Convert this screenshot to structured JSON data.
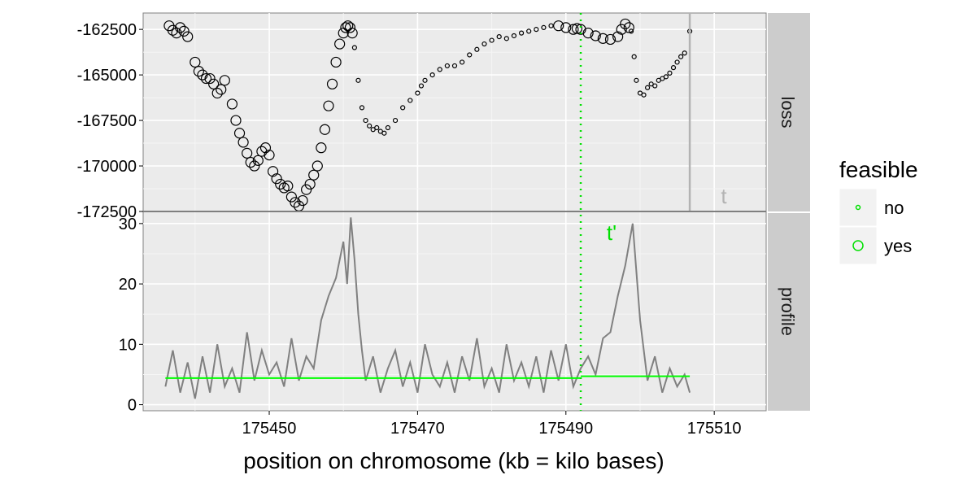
{
  "chart_data": {
    "type": "scatter",
    "xlabel": "position on chromosome (kb = kilo bases)",
    "xlim": [
      175433,
      175517
    ],
    "x_ticks": [
      175450,
      175470,
      175490,
      175510
    ],
    "panels": [
      {
        "strip": "loss",
        "ylim": [
          -172500,
          -161600
        ],
        "y_ticks": [
          -162500,
          -165000,
          -167500,
          -170000,
          -172500
        ],
        "series": [
          {
            "name": "yes",
            "points": [
              [
                175436.5,
                -162300
              ],
              [
                175437,
                -162550
              ],
              [
                175437.5,
                -162700
              ],
              [
                175438,
                -162400
              ],
              [
                175438.5,
                -162600
              ],
              [
                175439,
                -162900
              ],
              [
                175440,
                -164300
              ],
              [
                175440.5,
                -164800
              ],
              [
                175441,
                -165000
              ],
              [
                175441.5,
                -165200
              ],
              [
                175442,
                -165200
              ],
              [
                175442.5,
                -165500
              ],
              [
                175443,
                -166000
              ],
              [
                175443.5,
                -165800
              ],
              [
                175444,
                -165300
              ],
              [
                175445,
                -166600
              ],
              [
                175445.5,
                -167500
              ],
              [
                175446,
                -168200
              ],
              [
                175446.5,
                -168700
              ],
              [
                175447,
                -169300
              ],
              [
                175447.5,
                -169800
              ],
              [
                175448,
                -170000
              ],
              [
                175448.5,
                -169700
              ],
              [
                175449,
                -169200
              ],
              [
                175449.5,
                -169000
              ],
              [
                175450,
                -169400
              ],
              [
                175450.5,
                -170300
              ],
              [
                175451,
                -170700
              ],
              [
                175451.5,
                -171000
              ],
              [
                175452,
                -171200
              ],
              [
                175452.5,
                -171100
              ],
              [
                175453,
                -171700
              ],
              [
                175453.5,
                -172000
              ],
              [
                175454,
                -172200
              ],
              [
                175454.5,
                -171900
              ],
              [
                175455,
                -171300
              ],
              [
                175455.5,
                -171000
              ],
              [
                175456,
                -170500
              ],
              [
                175456.5,
                -170000
              ],
              [
                175457,
                -169000
              ],
              [
                175457.5,
                -168000
              ],
              [
                175458,
                -166700
              ],
              [
                175458.5,
                -165500
              ],
              [
                175459,
                -164300
              ],
              [
                175459.5,
                -163300
              ],
              [
                175460,
                -162700
              ],
              [
                175460.3,
                -162400
              ],
              [
                175460.6,
                -162300
              ],
              [
                175460.9,
                -162400
              ],
              [
                175461.2,
                -162700
              ],
              [
                175489,
                -162300
              ],
              [
                175490,
                -162400
              ],
              [
                175491,
                -162500
              ],
              [
                175491.5,
                -162450
              ],
              [
                175492,
                -162500
              ],
              [
                175493,
                -162700
              ],
              [
                175494,
                -162850
              ],
              [
                175495,
                -163000
              ],
              [
                175496,
                -163050
              ],
              [
                175497,
                -162900
              ],
              [
                175497.5,
                -162500
              ],
              [
                175498,
                -162200
              ],
              [
                175498.5,
                -162400
              ]
            ]
          },
          {
            "name": "no",
            "points": [
              [
                175461.5,
                -163500
              ],
              [
                175462,
                -165300
              ],
              [
                175462.5,
                -166800
              ],
              [
                175463,
                -167500
              ],
              [
                175463.5,
                -167800
              ],
              [
                175464,
                -168000
              ],
              [
                175464.5,
                -167900
              ],
              [
                175465,
                -168100
              ],
              [
                175465.5,
                -168200
              ],
              [
                175466,
                -167900
              ],
              [
                175467,
                -167500
              ],
              [
                175468,
                -166800
              ],
              [
                175469,
                -166400
              ],
              [
                175470,
                -166000
              ],
              [
                175470.5,
                -165600
              ],
              [
                175471,
                -165300
              ],
              [
                175472,
                -165000
              ],
              [
                175473,
                -164700
              ],
              [
                175474,
                -164500
              ],
              [
                175475,
                -164500
              ],
              [
                175476,
                -164300
              ],
              [
                175477,
                -163900
              ],
              [
                175478,
                -163600
              ],
              [
                175479,
                -163300
              ],
              [
                175480,
                -163100
              ],
              [
                175481,
                -162900
              ],
              [
                175482,
                -163000
              ],
              [
                175483,
                -162850
              ],
              [
                175484,
                -162700
              ],
              [
                175485,
                -162600
              ],
              [
                175486,
                -162500
              ],
              [
                175487,
                -162400
              ],
              [
                175488,
                -162300
              ],
              [
                175498.8,
                -162600
              ],
              [
                175499.2,
                -164000
              ],
              [
                175499.5,
                -165300
              ],
              [
                175500,
                -166000
              ],
              [
                175500.5,
                -166100
              ],
              [
                175501,
                -165700
              ],
              [
                175501.5,
                -165500
              ],
              [
                175502,
                -165600
              ],
              [
                175502.5,
                -165300
              ],
              [
                175503,
                -165200
              ],
              [
                175503.5,
                -165100
              ],
              [
                175504,
                -164900
              ],
              [
                175504.5,
                -164600
              ],
              [
                175505,
                -164300
              ],
              [
                175505.5,
                -164000
              ],
              [
                175506,
                -163800
              ],
              [
                175506.7,
                -162600
              ]
            ]
          }
        ]
      },
      {
        "strip": "profile",
        "ylim": [
          -1,
          32
        ],
        "y_ticks": [
          0,
          10,
          20,
          30
        ],
        "profile": {
          "x": [
            175436,
            175437,
            175438,
            175439,
            175440,
            175441,
            175442,
            175443,
            175444,
            175445,
            175446,
            175447,
            175448,
            175449,
            175450,
            175451,
            175452,
            175453,
            175454,
            175455,
            175456,
            175457,
            175458,
            175459,
            175460,
            175460.5,
            175461,
            175461.5,
            175462,
            175462.5,
            175463,
            175464,
            175465,
            175466,
            175467,
            175468,
            175469,
            175470,
            175471,
            175472,
            175473,
            175474,
            175475,
            175476,
            175477,
            175478,
            175479,
            175480,
            175481,
            175482,
            175483,
            175484,
            175485,
            175486,
            175487,
            175488,
            175489,
            175490,
            175491,
            175492,
            175493,
            175494,
            175495,
            175496,
            175497,
            175498,
            175499,
            175500,
            175501,
            175502,
            175503,
            175504,
            175505,
            175506,
            175506.7
          ],
          "y": [
            3,
            9,
            2,
            7,
            1,
            8,
            2,
            10,
            3,
            6,
            2,
            12,
            4,
            9,
            5,
            7,
            3,
            11,
            4,
            8,
            6,
            14,
            18,
            21,
            27,
            20,
            31,
            24,
            15,
            9,
            4,
            8,
            2,
            6,
            9,
            3,
            7,
            2,
            10,
            5,
            3,
            7,
            2,
            8,
            4,
            11,
            3,
            6,
            2,
            10,
            4,
            7,
            3,
            8,
            2,
            9,
            4,
            10,
            3,
            6,
            8,
            5,
            11,
            12,
            18,
            23,
            30,
            14,
            4,
            8,
            2,
            6,
            3,
            5,
            2
          ]
        },
        "segments": [
          {
            "x_start": 175436,
            "x_end": 175492,
            "y": 4.4
          },
          {
            "x_start": 175492,
            "x_end": 175506.7,
            "y": 4.7
          }
        ]
      }
    ],
    "vlines": [
      {
        "label": "t'",
        "x": 175492,
        "style": "dotted",
        "color": "#00e000"
      },
      {
        "label": "t",
        "x": 175506.7,
        "style": "solid",
        "color": "#b3b3b3"
      }
    ],
    "legend": {
      "title": "feasible",
      "position": "right",
      "entries": [
        {
          "label": "no",
          "marker": "small-circle"
        },
        {
          "label": "yes",
          "marker": "large-circle"
        }
      ]
    },
    "colors": {
      "panel_bg": "#ebebeb",
      "grid_major": "#ffffff",
      "strip_bg": "#cccccc",
      "profile_line": "#808080",
      "segment": "#00ff00",
      "points": "#000000",
      "t_line": "#b3b3b3",
      "t_prime": "#00e000"
    },
    "grid": true
  }
}
